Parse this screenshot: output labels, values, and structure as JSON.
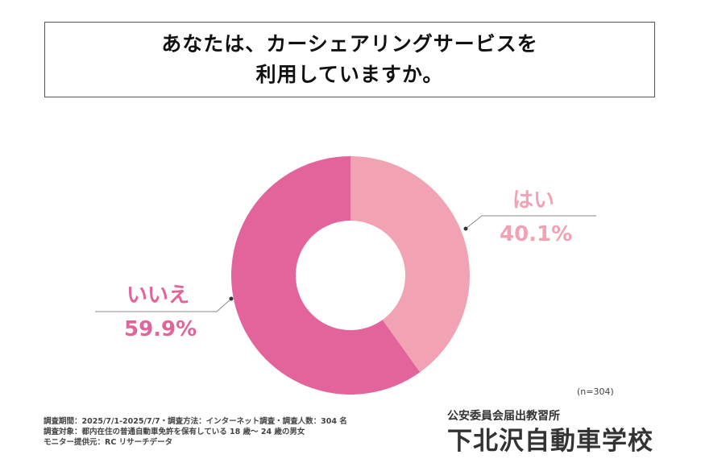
{
  "title": {
    "line1": "あなたは、カーシェアリングサービスを",
    "line2": "利用していますか。"
  },
  "chart_data": {
    "type": "pie",
    "donut": true,
    "categories": [
      "はい",
      "いいえ"
    ],
    "values": [
      40.1,
      59.9
    ],
    "value_labels": [
      "40.1%",
      "59.9%"
    ],
    "colors": [
      "#f2a3b3",
      "#e2649a"
    ],
    "start": "top",
    "direction": "clockwise",
    "n_label": "(n=304)"
  },
  "footnote": {
    "line1": "調査期間：2025/7/1-2025/7/7・調査方法：インターネット調査・調査人数：304 名",
    "line2": "調査対象：都内在住の普通自動車免許を保有している 18 歳～ 24 歳の男女",
    "line3": "モニター提供元：RC リサーチデータ"
  },
  "logo": {
    "subtitle": "公安委員会届出教習所",
    "name": "下北沢自動車学校"
  }
}
